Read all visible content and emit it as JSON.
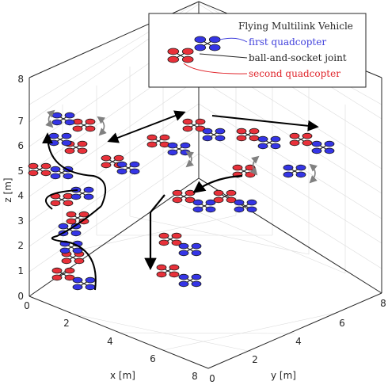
{
  "axes": {
    "x": {
      "label": "x [m]",
      "ticks": [
        "0",
        "2",
        "4",
        "6",
        "8"
      ]
    },
    "y": {
      "label": "y [m]",
      "ticks": [
        "0",
        "2",
        "4",
        "6",
        "8"
      ]
    },
    "z": {
      "label": "z [m]",
      "ticks": [
        "0",
        "1",
        "2",
        "3",
        "4",
        "5",
        "6",
        "7",
        "8"
      ]
    }
  },
  "legend": {
    "title": "Flying Multilink Vehicle",
    "entries": [
      {
        "label": "first quadcopter",
        "color": "#3f3fdc"
      },
      {
        "label": "ball-and-socket joint",
        "color": "#262626"
      },
      {
        "label": "second quadcopter",
        "color": "#e0262c"
      }
    ]
  },
  "colors": {
    "blue": "#3535e6",
    "red": "#e8313a",
    "arrow": "#000000",
    "gray_arrow": "#808080"
  }
}
